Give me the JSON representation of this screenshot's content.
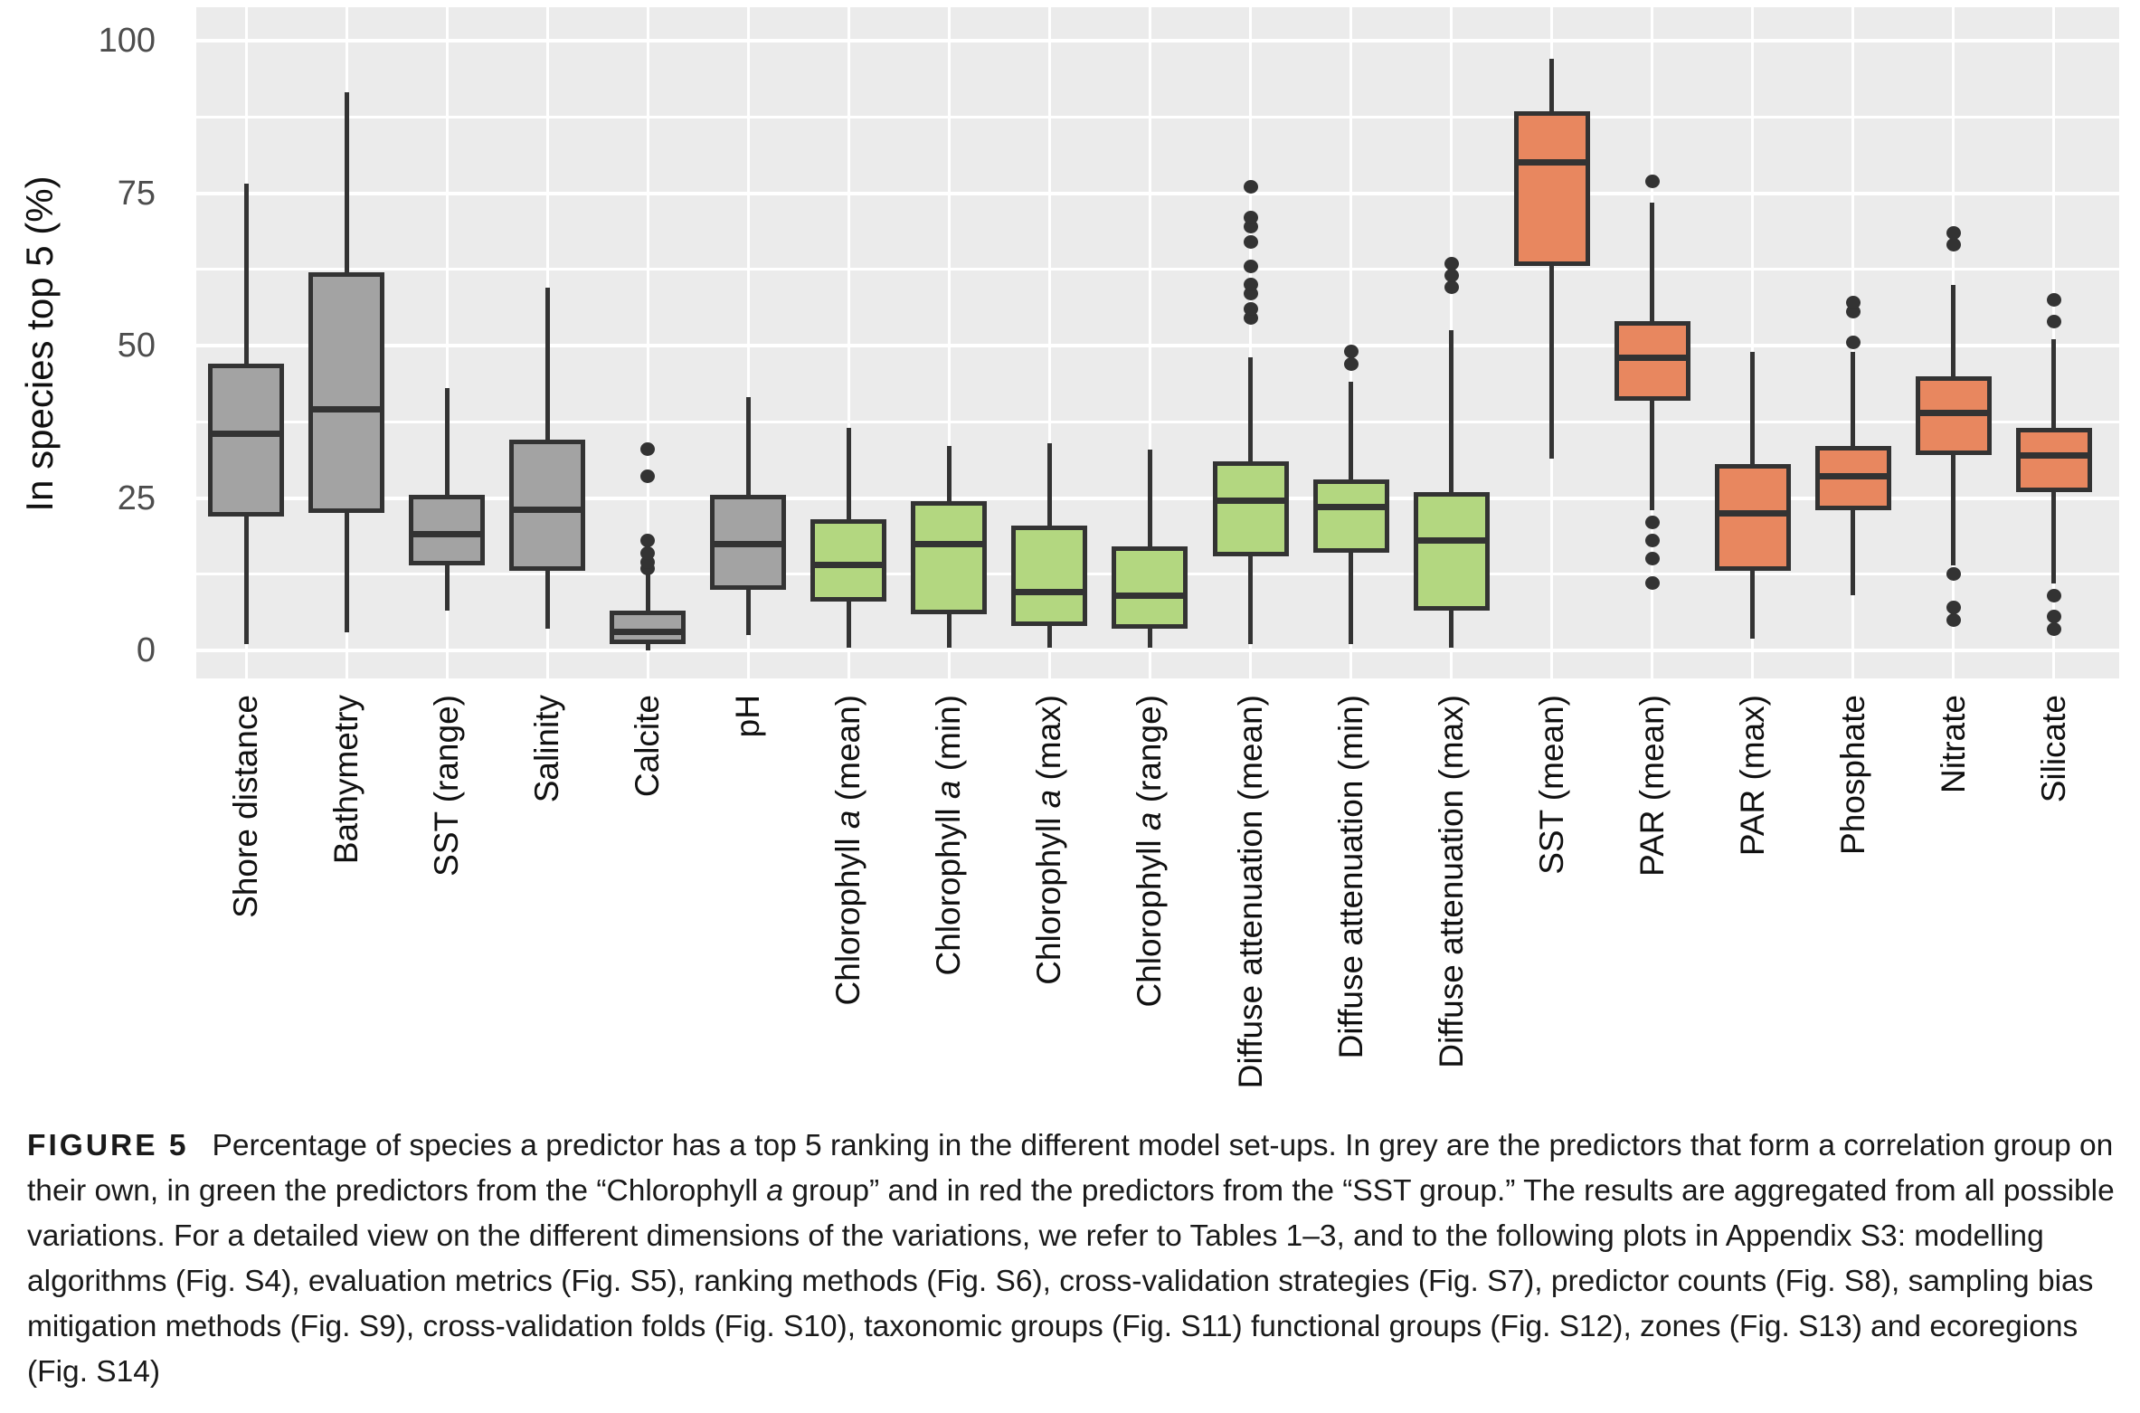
{
  "figure": {
    "caption": {
      "segments": [
        {
          "t": "FIGURE 5",
          "b": true
        },
        {
          "t": "Percentage of species a predictor has a top 5 ranking in the different model set-ups. In grey are the predictors that form a correlation group on their own, in green the predictors from the “Chlorophyll "
        },
        {
          "t": "a",
          "i": true
        },
        {
          "t": " group” and in red the predictors from the “SST group.” The results are aggregated from all possible variations. For a detailed view on the different dimensions of the variations, we refer to Tables 1–3, and to the following plots in Appendix S3: modelling algorithms (Fig. S4), evaluation metrics (Fig. S5), ranking methods (Fig. S6), cross-validation strategies (Fig. S7), predictor counts (Fig. S8), sampling bias mitigation methods (Fig. S9), cross-validation folds (Fig. S10), taxonomic groups (Fig. S11) functional groups (Fig. S12), zones (Fig. S13) and ecoregions (Fig. S14)"
        }
      ]
    }
  },
  "chart_data": {
    "type": "boxplot",
    "ylabel": "In species top 5 (%)",
    "ylim": [
      0,
      100
    ],
    "yticks": [
      0,
      25,
      50,
      75,
      100
    ],
    "y_minor_gridlines": [
      12.5,
      37.5,
      62.5,
      87.5
    ],
    "grid": "white major and minor horizontal lines plus vertical line at each category on grey panel",
    "legend": "none (colors explained in caption)",
    "colors": {
      "panel_bg": "#ebebeb",
      "gridline": "#ffffff",
      "stroke": "#333333",
      "tick_label": "#4d4d4d",
      "groups": {
        "grey": "#a3a3a3",
        "green": "#b3d780",
        "red": "#e8875f"
      }
    },
    "stats_order": [
      "whisker_low",
      "q1",
      "median",
      "q3",
      "whisker_high"
    ],
    "series": [
      {
        "name": "Shore distance",
        "group": "grey",
        "stats": [
          1,
          22,
          35.5,
          47,
          76.5
        ],
        "outliers": [],
        "label": [
          {
            "t": "Shore distance"
          }
        ]
      },
      {
        "name": "Bathymetry",
        "group": "grey",
        "stats": [
          3,
          22.5,
          39.5,
          62,
          91.5
        ],
        "outliers": [],
        "label": [
          {
            "t": "Bathymetry"
          }
        ]
      },
      {
        "name": "SST (range)",
        "group": "grey",
        "stats": [
          6.5,
          14,
          19,
          25.5,
          43
        ],
        "outliers": [],
        "label": [
          {
            "t": "SST (range)"
          }
        ]
      },
      {
        "name": "Salinity",
        "group": "grey",
        "stats": [
          3.5,
          13,
          23,
          34.5,
          59.5
        ],
        "outliers": [],
        "label": [
          {
            "t": "Salinity"
          }
        ]
      },
      {
        "name": "Calcite",
        "group": "grey",
        "stats": [
          0,
          1,
          3,
          6.5,
          12.5
        ],
        "outliers": [
          13.5,
          14.5,
          16,
          18,
          28.5,
          33
        ],
        "label": [
          {
            "t": "Calcite"
          }
        ]
      },
      {
        "name": "pH",
        "group": "grey",
        "stats": [
          2.5,
          10,
          17.5,
          25.5,
          41.5
        ],
        "outliers": [],
        "label": [
          {
            "t": "pH"
          }
        ]
      },
      {
        "name": "Chlorophyll a (mean)",
        "group": "green",
        "stats": [
          0.5,
          8,
          14,
          21.5,
          36.5
        ],
        "outliers": [],
        "label": [
          {
            "t": "Chlorophyll "
          },
          {
            "t": "a",
            "i": true
          },
          {
            "t": " (mean)"
          }
        ]
      },
      {
        "name": "Chlorophyll a (min)",
        "group": "green",
        "stats": [
          0.5,
          6,
          17.5,
          24.5,
          33.5
        ],
        "outliers": [],
        "label": [
          {
            "t": "Chlorophyll "
          },
          {
            "t": "a",
            "i": true
          },
          {
            "t": " (min)"
          }
        ]
      },
      {
        "name": "Chlorophyll a (max)",
        "group": "green",
        "stats": [
          0.5,
          4,
          9.5,
          20.5,
          34
        ],
        "outliers": [],
        "label": [
          {
            "t": "Chlorophyll "
          },
          {
            "t": "a",
            "i": true
          },
          {
            "t": " (max)"
          }
        ]
      },
      {
        "name": "Chlorophyll a (range)",
        "group": "green",
        "stats": [
          0.5,
          3.5,
          9,
          17,
          33
        ],
        "outliers": [],
        "label": [
          {
            "t": "Chlorophyll "
          },
          {
            "t": "a",
            "i": true
          },
          {
            "t": " (range)"
          }
        ]
      },
      {
        "name": "Diffuse attenuation (mean)",
        "group": "green",
        "stats": [
          1,
          15.5,
          24.5,
          31,
          48
        ],
        "outliers": [
          54.5,
          56,
          58.5,
          60,
          63,
          67,
          69.5,
          71,
          76
        ],
        "label": [
          {
            "t": "Diffuse attenuation (mean)"
          }
        ]
      },
      {
        "name": "Diffuse attenuation (min)",
        "group": "green",
        "stats": [
          1,
          16,
          23.5,
          28,
          44
        ],
        "outliers": [
          47,
          49
        ],
        "label": [
          {
            "t": "Diffuse attenuation (min)"
          }
        ]
      },
      {
        "name": "Diffuse attenuation (max)",
        "group": "green",
        "stats": [
          0.5,
          6.5,
          18,
          26,
          52.5
        ],
        "outliers": [
          59.5,
          61.5,
          63.5
        ],
        "label": [
          {
            "t": "Diffuse attenuation (max)"
          }
        ]
      },
      {
        "name": "SST (mean)",
        "group": "red",
        "stats": [
          31.5,
          63,
          80,
          88.5,
          97
        ],
        "outliers": [],
        "label": [
          {
            "t": "SST (mean)"
          }
        ]
      },
      {
        "name": "PAR (mean)",
        "group": "red",
        "stats": [
          23,
          41,
          48,
          54,
          73.5
        ],
        "outliers": [
          77,
          21,
          18,
          15,
          11
        ],
        "label": [
          {
            "t": "PAR (mean)"
          }
        ]
      },
      {
        "name": "PAR (max)",
        "group": "red",
        "stats": [
          2,
          13,
          22.5,
          30.5,
          49
        ],
        "outliers": [],
        "label": [
          {
            "t": "PAR (max)"
          }
        ]
      },
      {
        "name": "Phosphate",
        "group": "red",
        "stats": [
          9,
          23,
          28.5,
          33.5,
          49
        ],
        "outliers": [
          50.5,
          55.5,
          57
        ],
        "label": [
          {
            "t": "Phosphate"
          }
        ]
      },
      {
        "name": "Nitrate",
        "group": "red",
        "stats": [
          14,
          32,
          39,
          45,
          60
        ],
        "outliers": [
          66.5,
          68.5,
          12.5,
          7,
          5
        ],
        "label": [
          {
            "t": "Nitrate"
          }
        ]
      },
      {
        "name": "Silicate",
        "group": "red",
        "stats": [
          11,
          26,
          32,
          36.5,
          51
        ],
        "outliers": [
          54,
          57.5,
          9,
          5.5,
          3.5
        ],
        "label": [
          {
            "t": "Silicate"
          }
        ]
      }
    ]
  }
}
